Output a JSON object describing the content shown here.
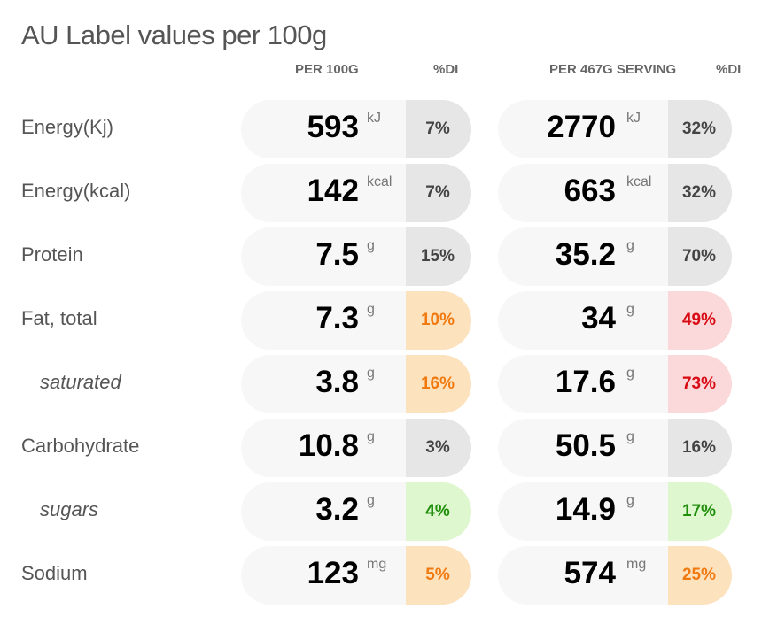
{
  "title": "AU Label values per 100g",
  "headers": {
    "per100": "PER 100G",
    "di1": "%DI",
    "perServing": "PER 467G SERVING",
    "di2": "%DI"
  },
  "rows": [
    {
      "label": "Energy(Kj)",
      "sub": false,
      "v100": "593",
      "u": "kJ",
      "d100": "7%",
      "c100": "grey",
      "vs": "2770",
      "ds": "32%",
      "cs": "grey"
    },
    {
      "label": "Energy(kcal)",
      "sub": false,
      "v100": "142",
      "u": "kcal",
      "d100": "7%",
      "c100": "grey",
      "vs": "663",
      "ds": "32%",
      "cs": "grey"
    },
    {
      "label": "Protein",
      "sub": false,
      "v100": "7.5",
      "u": "g",
      "d100": "15%",
      "c100": "grey",
      "vs": "35.2",
      "ds": "70%",
      "cs": "grey"
    },
    {
      "label": "Fat, total",
      "sub": false,
      "v100": "7.3",
      "u": "g",
      "d100": "10%",
      "c100": "orange",
      "vs": "34",
      "ds": "49%",
      "cs": "red"
    },
    {
      "label": "saturated",
      "sub": true,
      "v100": "3.8",
      "u": "g",
      "d100": "16%",
      "c100": "orange",
      "vs": "17.6",
      "ds": "73%",
      "cs": "red"
    },
    {
      "label": "Carbohydrate",
      "sub": false,
      "v100": "10.8",
      "u": "g",
      "d100": "3%",
      "c100": "grey",
      "vs": "50.5",
      "ds": "16%",
      "cs": "grey"
    },
    {
      "label": "sugars",
      "sub": true,
      "v100": "3.2",
      "u": "g",
      "d100": "4%",
      "c100": "green",
      "vs": "14.9",
      "ds": "17%",
      "cs": "green"
    },
    {
      "label": "Sodium",
      "sub": false,
      "v100": "123",
      "u": "mg",
      "d100": "5%",
      "c100": "orange",
      "vs": "574",
      "ds": "25%",
      "cs": "orange"
    }
  ],
  "colors": {
    "grey": "#e6e6e6",
    "orange": "#fde2be",
    "red": "#fbd9da",
    "green": "#dff7cf"
  }
}
